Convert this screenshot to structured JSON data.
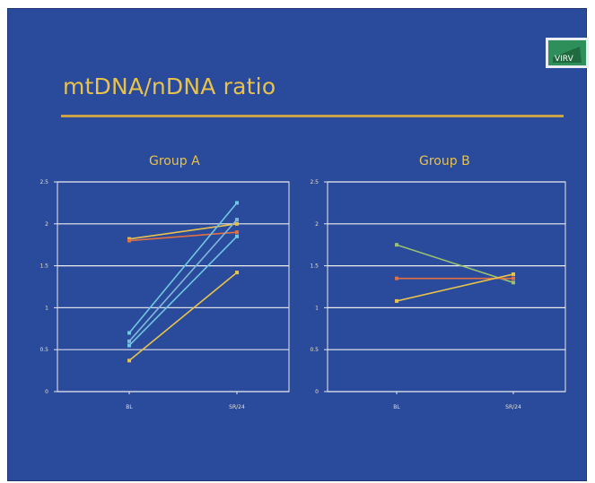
{
  "slide": {
    "title": "mtDNA/nDNA ratio",
    "background": "#2a4a9c",
    "accent": "#e8c24a",
    "logo_text": "VIRV"
  },
  "chart_data": [
    {
      "type": "line",
      "title": "Group A",
      "categories": [
        "BL",
        "SR/24"
      ],
      "ylim": [
        0,
        2.5
      ],
      "yticks": [
        "0",
        "0.5",
        "1",
        "1.5",
        "2",
        "2.5"
      ],
      "grid": true,
      "series": [
        {
          "values": [
            1.82,
            2.0
          ],
          "color": "#e8c24a"
        },
        {
          "values": [
            1.8,
            1.9
          ],
          "color": "#e07040"
        },
        {
          "values": [
            0.7,
            2.25
          ],
          "color": "#6fc8e0"
        },
        {
          "values": [
            0.6,
            2.05
          ],
          "color": "#7fb8d8"
        },
        {
          "values": [
            0.55,
            1.85
          ],
          "color": "#6fc8e0"
        },
        {
          "values": [
            0.37,
            1.42
          ],
          "color": "#e8c24a"
        }
      ]
    },
    {
      "type": "line",
      "title": "Group B",
      "categories": [
        "BL",
        "SR/24"
      ],
      "ylim": [
        0,
        2.5
      ],
      "yticks": [
        "0",
        "0.5",
        "1",
        "1.5",
        "2",
        "2.5"
      ],
      "grid": true,
      "series": [
        {
          "values": [
            1.75,
            1.3
          ],
          "color": "#9ac070"
        },
        {
          "values": [
            1.35,
            1.35
          ],
          "color": "#e07040"
        },
        {
          "values": [
            1.08,
            1.4
          ],
          "color": "#e8c24a"
        }
      ]
    }
  ]
}
